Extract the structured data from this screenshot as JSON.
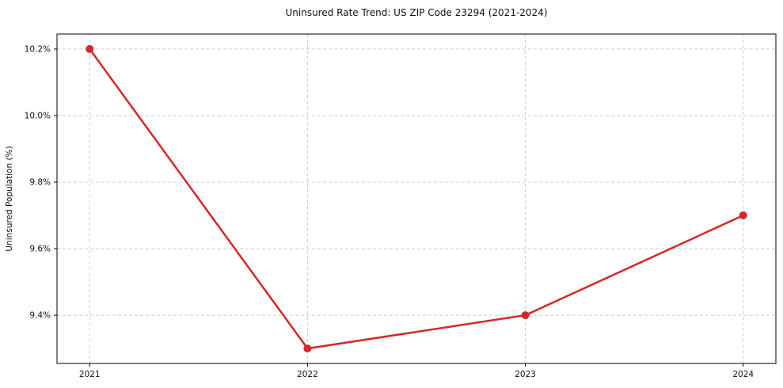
{
  "chart_data": {
    "type": "line",
    "title": "Uninsured Rate Trend: US ZIP Code 23294 (2021-2024)",
    "xlabel": "",
    "ylabel": "Uninsured Population (%)",
    "x": [
      2021,
      2022,
      2023,
      2024
    ],
    "values": [
      10.2,
      9.3,
      9.4,
      9.7
    ],
    "x_tick_labels": [
      "2021",
      "2022",
      "2023",
      "2024"
    ],
    "y_ticks": [
      9.4,
      9.6,
      9.8,
      10.0,
      10.2
    ],
    "y_tick_labels": [
      "9.4%",
      "9.6%",
      "9.8%",
      "10.0%",
      "10.2%"
    ],
    "xlim": [
      2020.85,
      2024.15
    ],
    "ylim": [
      9.255,
      10.245
    ],
    "grid": true,
    "grid_style": "dashed",
    "legend": false,
    "line_color": "#d62728",
    "marker_color": "#d62728",
    "grid_color": "#cccccc",
    "spine_color": "#000000",
    "text_color": "#111111",
    "background": "#ffffff"
  }
}
